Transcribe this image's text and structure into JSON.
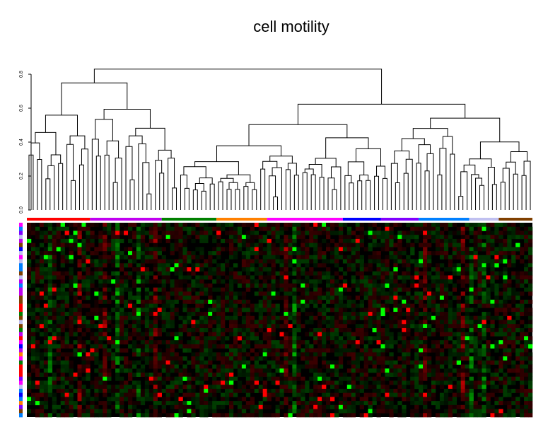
{
  "chart_data": {
    "type": "heatmap",
    "title": "cell motility",
    "xlabel": "",
    "ylabel": "",
    "dendrogram": {
      "ylim": [
        0,
        0.85
      ],
      "ticks": [
        "0.0",
        "0.2",
        "0.4",
        "0.6",
        "0.8"
      ],
      "tick_values": [
        0,
        0.2,
        0.4,
        0.6,
        0.8
      ],
      "root_height": 0.83
    },
    "n_rows": 48,
    "n_cols": 120,
    "color_scale": {
      "low": "#00ff00",
      "mid": "#000000",
      "high": "#ff0000",
      "range": [
        -1,
        1
      ]
    },
    "column_groups": [
      {
        "color": "#ff0000",
        "count": 15
      },
      {
        "color": "#c000f0",
        "count": 17
      },
      {
        "color": "#008000",
        "count": 13
      },
      {
        "color": "#ff8000",
        "count": 12
      },
      {
        "color": "#ff00ff",
        "count": 18
      },
      {
        "color": "#0000ff",
        "count": 9
      },
      {
        "color": "#8000ff",
        "count": 9
      },
      {
        "color": "#0080ff",
        "count": 12
      },
      {
        "color": "#c0c0f0",
        "count": 7
      },
      {
        "color": "#804000",
        "count": 8
      }
    ],
    "seed": 7
  }
}
